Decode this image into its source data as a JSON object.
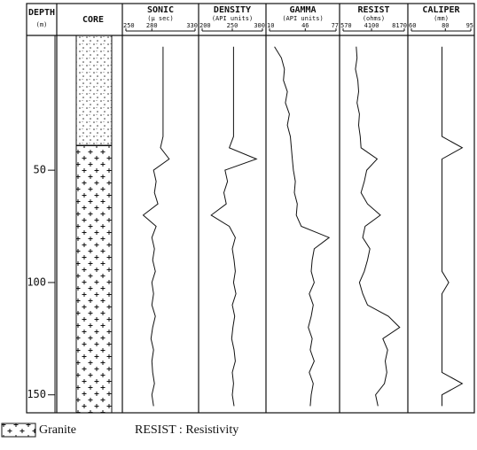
{
  "depth_axis": {
    "title": "DEPTH",
    "unit": "(m)",
    "ylim": [
      -10,
      158
    ],
    "yticks": [
      50,
      100,
      150
    ],
    "depths": [
      -5,
      0,
      5,
      10,
      15,
      20,
      25,
      30,
      35,
      40,
      45,
      50,
      55,
      60,
      65,
      70,
      75,
      80,
      85,
      90,
      95,
      100,
      105,
      110,
      115,
      120,
      125,
      130,
      135,
      140,
      145,
      150,
      155
    ]
  },
  "core": {
    "title": "CORE",
    "boundary_depth": 39
  },
  "chart_data": [
    {
      "type": "line",
      "title": "SONIC",
      "unit": "(μ sec)",
      "xlim": [
        250,
        330
      ],
      "xticks": [
        250,
        280,
        330
      ],
      "color": "#111",
      "values": [
        293,
        293,
        293,
        293,
        293,
        293,
        293,
        293,
        293,
        290,
        300,
        282,
        285,
        283,
        287,
        270,
        285,
        280,
        283,
        281,
        284,
        280,
        282,
        280,
        284,
        281,
        279,
        282,
        280,
        281,
        283,
        280,
        282
      ]
    },
    {
      "type": "line",
      "title": "DENSITY",
      "unit": "(API units)",
      "xlim": [
        200,
        300
      ],
      "xticks": [
        200,
        250,
        300
      ],
      "color": "#111",
      "values": [
        252,
        252,
        252,
        252,
        252,
        252,
        252,
        252,
        252,
        245,
        290,
        238,
        242,
        236,
        240,
        215,
        245,
        255,
        250,
        253,
        255,
        252,
        256,
        250,
        254,
        251,
        249,
        253,
        255,
        250,
        252,
        250,
        253
      ]
    },
    {
      "type": "line",
      "title": "GAMMA",
      "unit": "(API units)",
      "xlim": [
        10,
        77
      ],
      "xticks": [
        10,
        46,
        77
      ],
      "color": "#111",
      "values": [
        15,
        22,
        25,
        24,
        28,
        26,
        30,
        28,
        31,
        32,
        33,
        34,
        36,
        35,
        38,
        37,
        42,
        70,
        55,
        53,
        52,
        55,
        50,
        54,
        52,
        49,
        53,
        51,
        55,
        50,
        54,
        52,
        51
      ]
    },
    {
      "type": "line",
      "title": "RESIST",
      "unit": "(ohms)",
      "xlim": [
        570,
        8170
      ],
      "xticks": [
        570,
        4100,
        8170
      ],
      "color": "#111",
      "values": [
        2200,
        2300,
        2100,
        2400,
        2500,
        2300,
        2600,
        2500,
        2700,
        2800,
        4800,
        3500,
        3200,
        2800,
        3600,
        5200,
        3300,
        3000,
        3900,
        3600,
        3200,
        2600,
        3000,
        3600,
        6200,
        7600,
        5500,
        6100,
        5800,
        6000,
        5700,
        4600,
        4900
      ]
    },
    {
      "type": "line",
      "title": "CALIPER",
      "unit": "(mm)",
      "xlim": [
        60,
        95
      ],
      "xticks": [
        60,
        80,
        95
      ],
      "color": "#111",
      "values": [
        78,
        78,
        78,
        78,
        78,
        78,
        78,
        78,
        78,
        90,
        78,
        78,
        78,
        78,
        78,
        78,
        78,
        78,
        78,
        78,
        78,
        82,
        78,
        78,
        78,
        78,
        78,
        78,
        78,
        78,
        90,
        78,
        78
      ]
    }
  ],
  "legend": {
    "core": "Granite",
    "note": "RESIST : Resistivity"
  }
}
